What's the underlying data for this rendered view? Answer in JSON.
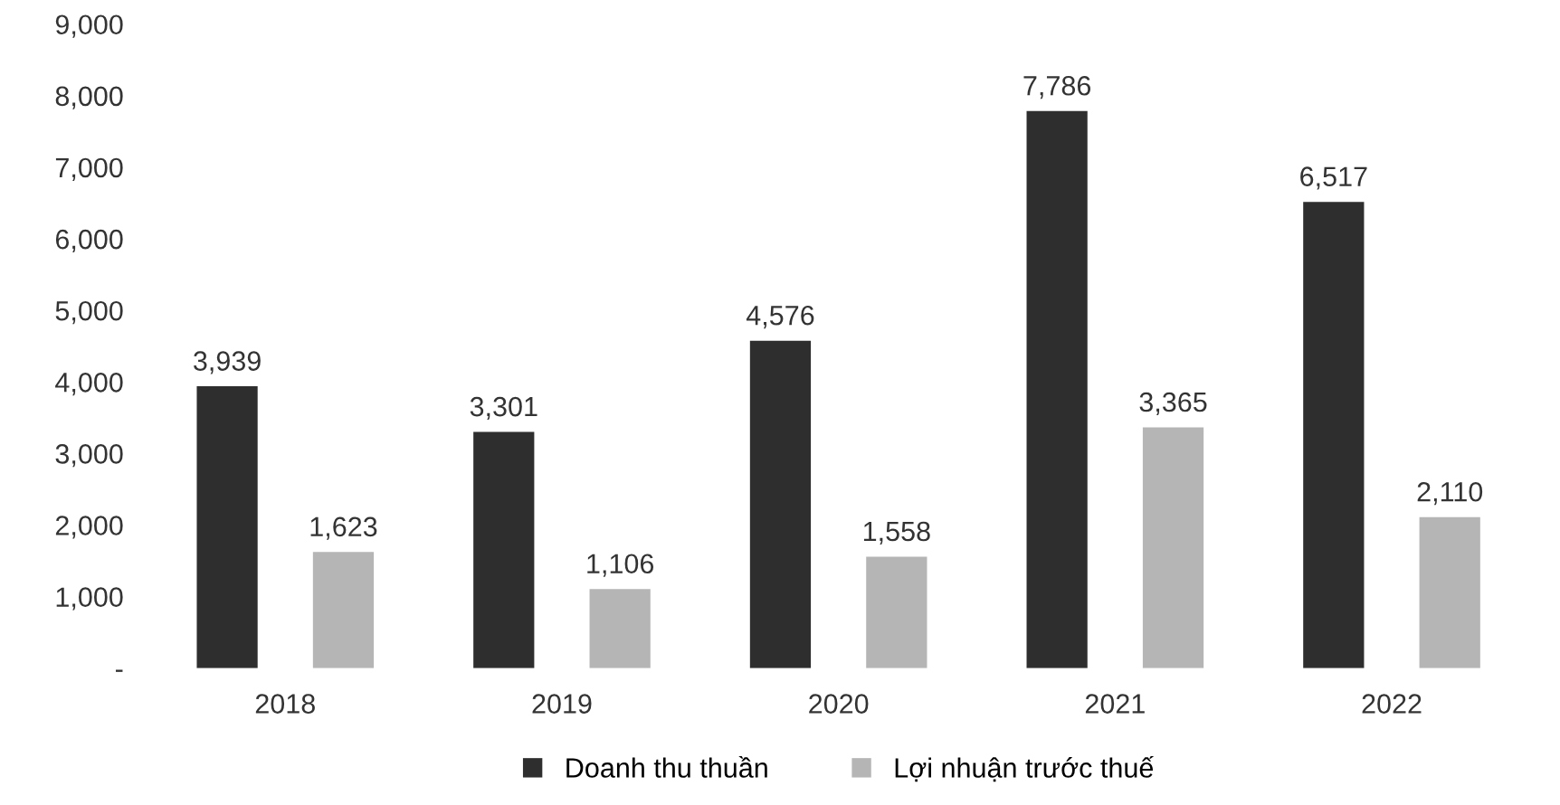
{
  "chart_data": {
    "type": "bar",
    "categories": [
      "2018",
      "2019",
      "2020",
      "2021",
      "2022"
    ],
    "series": [
      {
        "name": "Doanh thu thuần",
        "color": "#2e2e2e",
        "values": [
          3939,
          3301,
          4576,
          7786,
          6517
        ],
        "value_labels": [
          "3,939",
          "3,301",
          "4,576",
          "7,786",
          "6,517"
        ]
      },
      {
        "name": "Lợi nhuận trước thuế",
        "color": "#b5b5b5",
        "values": [
          1623,
          1106,
          1558,
          3365,
          2110
        ],
        "value_labels": [
          "1,623",
          "1,106",
          "1,558",
          "3,365",
          "2,110"
        ]
      }
    ],
    "ylim": [
      0,
      9000
    ],
    "yticks": [
      {
        "value": 0,
        "label": "-"
      },
      {
        "value": 1000,
        "label": "1,000"
      },
      {
        "value": 2000,
        "label": "2,000"
      },
      {
        "value": 3000,
        "label": "3,000"
      },
      {
        "value": 4000,
        "label": "4,000"
      },
      {
        "value": 5000,
        "label": "5,000"
      },
      {
        "value": 6000,
        "label": "6,000"
      },
      {
        "value": 7000,
        "label": "7,000"
      },
      {
        "value": 8000,
        "label": "8,000"
      },
      {
        "value": 9000,
        "label": "9,000"
      }
    ],
    "grid": false,
    "legend": "bottom"
  }
}
